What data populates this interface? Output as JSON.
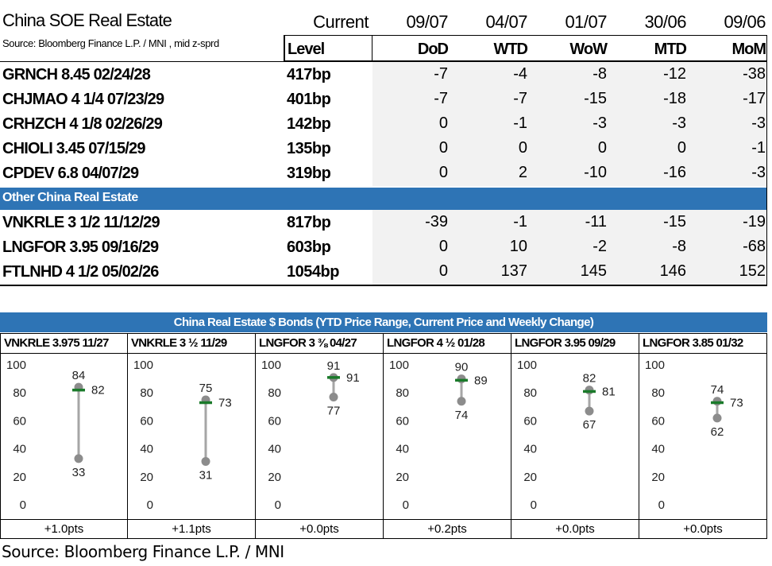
{
  "table": {
    "title": "China SOE Real Estate",
    "source": "Source: Bloomberg Finance L.P. / MNI , mid z-sprd",
    "current_label": "Current",
    "level_label": "Level",
    "dates": [
      "09/07",
      "04/07",
      "01/07",
      "30/06",
      "09/06"
    ],
    "changes": [
      "DoD",
      "WTD",
      "WoW",
      "MTD",
      "MoM"
    ],
    "section2_title": "Other China Real Estate",
    "rows_soe": [
      {
        "name": "GRNCH 8.45 02/24/28",
        "level": "417bp",
        "values": [
          "-7",
          "-4",
          "-8",
          "-12",
          "-38"
        ]
      },
      {
        "name": "CHJMAO 4 1/4 07/23/29",
        "level": "401bp",
        "values": [
          "-7",
          "-7",
          "-15",
          "-18",
          "-17"
        ]
      },
      {
        "name": "CRHZCH 4 1/8 02/26/29",
        "level": "142bp",
        "values": [
          "0",
          "-1",
          "-3",
          "-3",
          "-3"
        ]
      },
      {
        "name": "CHIOLI 3.45 07/15/29",
        "level": "135bp",
        "values": [
          "0",
          "0",
          "0",
          "0",
          "-1"
        ]
      },
      {
        "name": "CPDEV 6.8 04/07/29",
        "level": "319bp",
        "values": [
          "0",
          "2",
          "-10",
          "-16",
          "-3"
        ]
      }
    ],
    "rows_other": [
      {
        "name": "VNKRLE 3 1/2 11/12/29",
        "level": "817bp",
        "values": [
          "-39",
          "-1",
          "-11",
          "-15",
          "-19"
        ]
      },
      {
        "name": "LNGFOR 3.95 09/16/29",
        "level": "603bp",
        "values": [
          "0",
          "10",
          "-2",
          "-8",
          "-68"
        ]
      },
      {
        "name": "FTLNHD 4 1/2 05/02/26",
        "level": "1054bp",
        "values": [
          "0",
          "137",
          "145",
          "146",
          "152"
        ]
      }
    ]
  },
  "colors": {
    "band": "#2e74b5",
    "shade": "#f2f2f2",
    "range_line": "#a6a6a6",
    "marker": "#8c8c8c",
    "current_dash": "#1a7a2a"
  },
  "chart_data": {
    "type": "range",
    "title": "China Real Estate $ Bonds (YTD Price Range, Current Price and Weekly Change)",
    "ylim": [
      0,
      100
    ],
    "yticks": [
      0,
      20,
      40,
      60,
      80,
      100
    ],
    "bonds": [
      {
        "name": "VNKRLE 3.975 11/27",
        "high": 84,
        "low": 33,
        "current": 82,
        "change": "+1.0pts"
      },
      {
        "name": "VNKRLE 3 ½ 11/29",
        "high": 75,
        "low": 31,
        "current": 73,
        "change": "+1.1pts"
      },
      {
        "name": "LNGFOR 3 ⅜ 04/27",
        "high": 91,
        "low": 77,
        "current": 91,
        "change": "+0.0pts"
      },
      {
        "name": "LNGFOR 4 ½ 01/28",
        "high": 90,
        "low": 74,
        "current": 89,
        "change": "+0.2pts"
      },
      {
        "name": "LNGFOR 3.95 09/29",
        "high": 82,
        "low": 67,
        "current": 81,
        "change": "+0.0pts"
      },
      {
        "name": "LNGFOR 3.85 01/32",
        "high": 74,
        "low": 62,
        "current": 73,
        "change": "+0.0pts"
      }
    ]
  },
  "footer": {
    "source": "Source: Bloomberg Finance L.P. / MNI"
  }
}
